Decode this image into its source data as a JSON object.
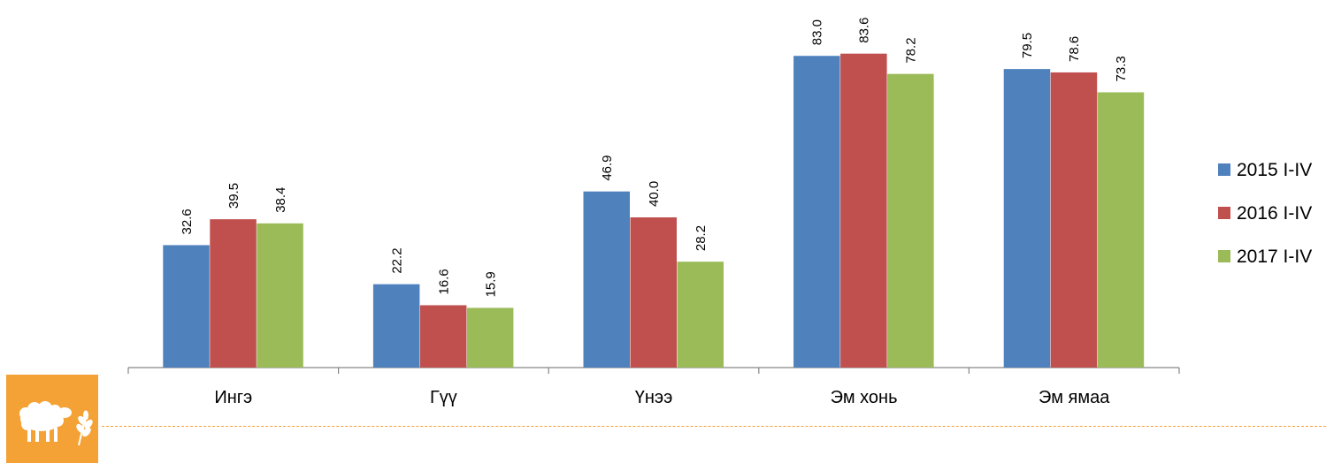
{
  "chart_data": {
    "type": "bar",
    "categories": [
      "Ингэ",
      "Гүү",
      "Үнээ",
      "Эм хонь",
      "Эм ямаа"
    ],
    "series": [
      {
        "name": "2015 I-IV",
        "color": "#4f81bd",
        "values": [
          32.6,
          22.2,
          46.9,
          83.0,
          79.5
        ]
      },
      {
        "name": "2016 I-IV",
        "color": "#c0504d",
        "values": [
          39.5,
          16.6,
          40.0,
          83.6,
          78.6
        ]
      },
      {
        "name": "2017 I-IV",
        "color": "#9bbb59",
        "values": [
          38.4,
          15.9,
          28.2,
          78.2,
          73.3
        ]
      }
    ],
    "value_labels": [
      [
        "32.6",
        "22.2",
        "46.9",
        "83.0",
        "79.5"
      ],
      [
        "39.5",
        "16.6",
        "40.0",
        "83.6",
        "78.6"
      ],
      [
        "38.4",
        "15.9",
        "28.2",
        "78.2",
        "73.3"
      ]
    ],
    "ylim": [
      0,
      100
    ],
    "title": "",
    "xlabel": "",
    "ylabel": "",
    "grid": false,
    "legend_position": "right"
  },
  "badge": {
    "icon": "sheep-wheat-icon",
    "color": "#f4a236"
  },
  "divider": {
    "style": "dashed",
    "color": "#f4a236"
  }
}
